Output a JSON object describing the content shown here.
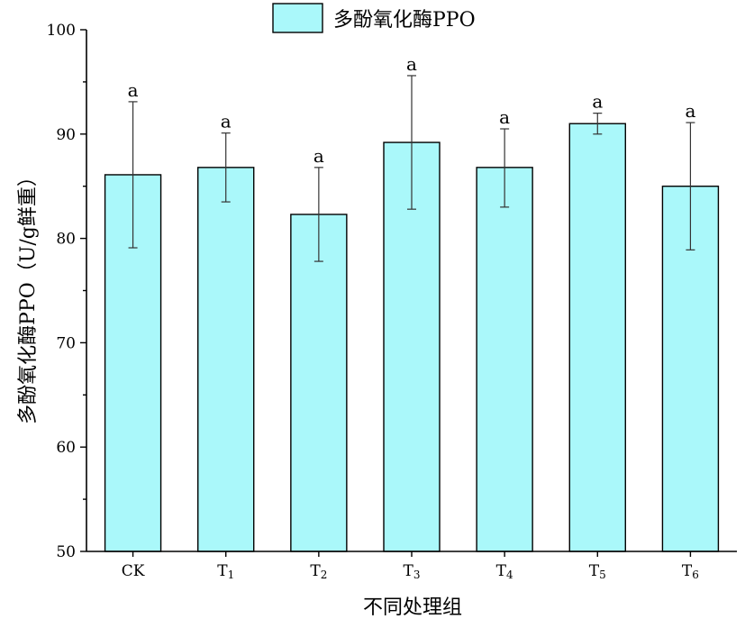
{
  "chart_data": {
    "type": "bar",
    "legend": {
      "label": "多酚氧化酶PPO",
      "position": "top-center",
      "color": "#aaf8fa"
    },
    "xlabel": "不同处理组",
    "ylabel": "多酚氧化酶PPO（U/g鲜重）",
    "ylim": [
      50,
      100
    ],
    "yticks": [
      50,
      60,
      70,
      80,
      90,
      100
    ],
    "grid": false,
    "bar_color": "#aaf8fa",
    "categories": [
      {
        "base": "CK",
        "sub": ""
      },
      {
        "base": "T",
        "sub": "1"
      },
      {
        "base": "T",
        "sub": "2"
      },
      {
        "base": "T",
        "sub": "3"
      },
      {
        "base": "T",
        "sub": "4"
      },
      {
        "base": "T",
        "sub": "5"
      },
      {
        "base": "T",
        "sub": "6"
      }
    ],
    "values": [
      86.1,
      86.8,
      82.3,
      89.2,
      86.8,
      91.0,
      85.0
    ],
    "error_upper": [
      93.1,
      90.1,
      86.8,
      95.6,
      90.5,
      92.0,
      91.1
    ],
    "error_lower": [
      79.1,
      83.5,
      77.8,
      82.8,
      83.0,
      90.0,
      78.9
    ],
    "significance": [
      "a",
      "a",
      "a",
      "a",
      "a",
      "a",
      "a"
    ]
  }
}
